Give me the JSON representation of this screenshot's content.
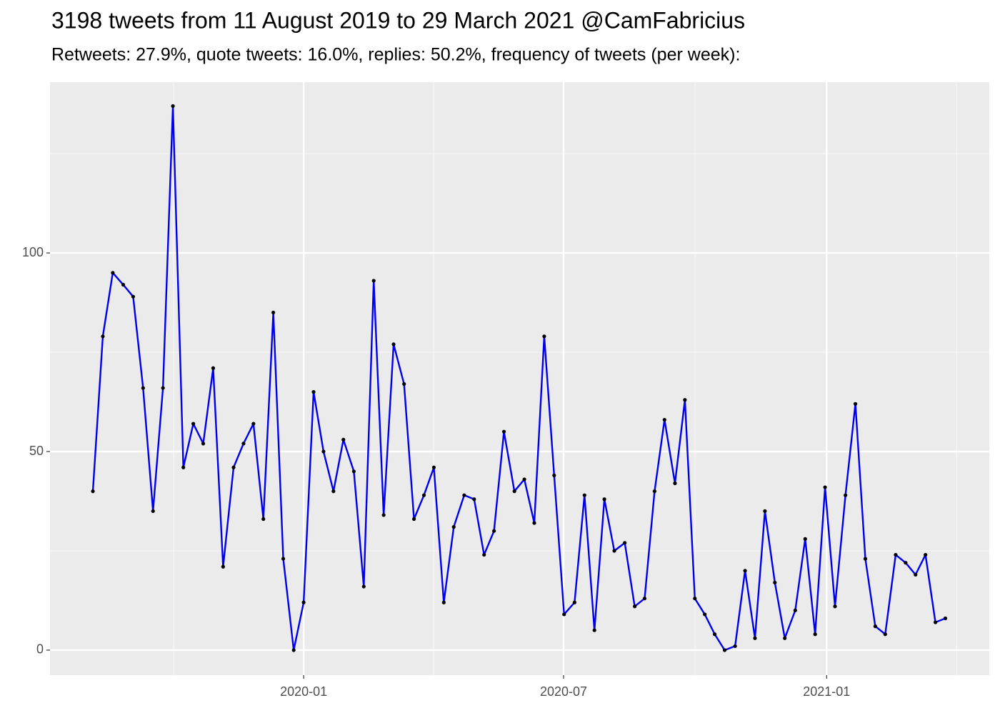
{
  "chart_data": {
    "type": "line",
    "title": "3198 tweets from 11 August 2019 to 29 March 2021 @CamFabricius",
    "subtitle": "Retweets: 27.9%, quote tweets: 16.0%, replies: 50.2%, frequency of tweets (per week):",
    "x": [
      2019.597,
      2019.616,
      2019.635,
      2019.655,
      2019.674,
      2019.693,
      2019.712,
      2019.731,
      2019.75,
      2019.77,
      2019.789,
      2019.808,
      2019.827,
      2019.846,
      2019.866,
      2019.885,
      2019.904,
      2019.923,
      2019.942,
      2019.961,
      2019.981,
      2020.0,
      2020.019,
      2020.038,
      2020.057,
      2020.076,
      2020.096,
      2020.115,
      2020.134,
      2020.153,
      2020.172,
      2020.192,
      2020.211,
      2020.23,
      2020.249,
      2020.268,
      2020.287,
      2020.307,
      2020.326,
      2020.345,
      2020.364,
      2020.383,
      2020.403,
      2020.422,
      2020.441,
      2020.46,
      2020.479,
      2020.498,
      2020.518,
      2020.537,
      2020.556,
      2020.575,
      2020.594,
      2020.614,
      2020.633,
      2020.652,
      2020.671,
      2020.69,
      2020.71,
      2020.729,
      2020.748,
      2020.767,
      2020.786,
      2020.805,
      2020.825,
      2020.844,
      2020.863,
      2020.882,
      2020.901,
      2020.92,
      2020.94,
      2020.959,
      2020.978,
      2020.997,
      2021.016,
      2021.036,
      2021.055,
      2021.074,
      2021.093,
      2021.112,
      2021.132,
      2021.151,
      2021.17,
      2021.189,
      2021.208,
      2021.227
    ],
    "values": [
      40,
      79,
      95,
      92,
      89,
      66,
      35,
      66,
      137,
      46,
      57,
      52,
      71,
      21,
      46,
      52,
      57,
      33,
      85,
      23,
      0,
      12,
      65,
      50,
      40,
      53,
      45,
      16,
      93,
      34,
      77,
      67,
      33,
      39,
      46,
      12,
      31,
      39,
      38,
      24,
      30,
      55,
      40,
      43,
      32,
      79,
      44,
      9,
      12,
      39,
      5,
      38,
      25,
      27,
      11,
      13,
      40,
      58,
      42,
      63,
      13,
      9,
      4,
      0,
      1,
      20,
      3,
      35,
      17,
      3,
      10,
      28,
      4,
      41,
      11,
      39,
      62,
      23,
      6,
      4,
      24,
      22,
      19,
      24,
      7,
      8
    ],
    "color": "#0000ee",
    "point_color": "#000000",
    "xlim": [
      2019.515,
      2021.311
    ],
    "xticks": [
      {
        "value": 2020.0,
        "label": "2020-01"
      },
      {
        "value": 2020.497,
        "label": "2020-07"
      },
      {
        "value": 2021.0,
        "label": "2021-01"
      }
    ],
    "ylim": [
      -6.3,
      143
    ],
    "yticks": [
      0,
      50,
      100
    ],
    "grid": true
  }
}
